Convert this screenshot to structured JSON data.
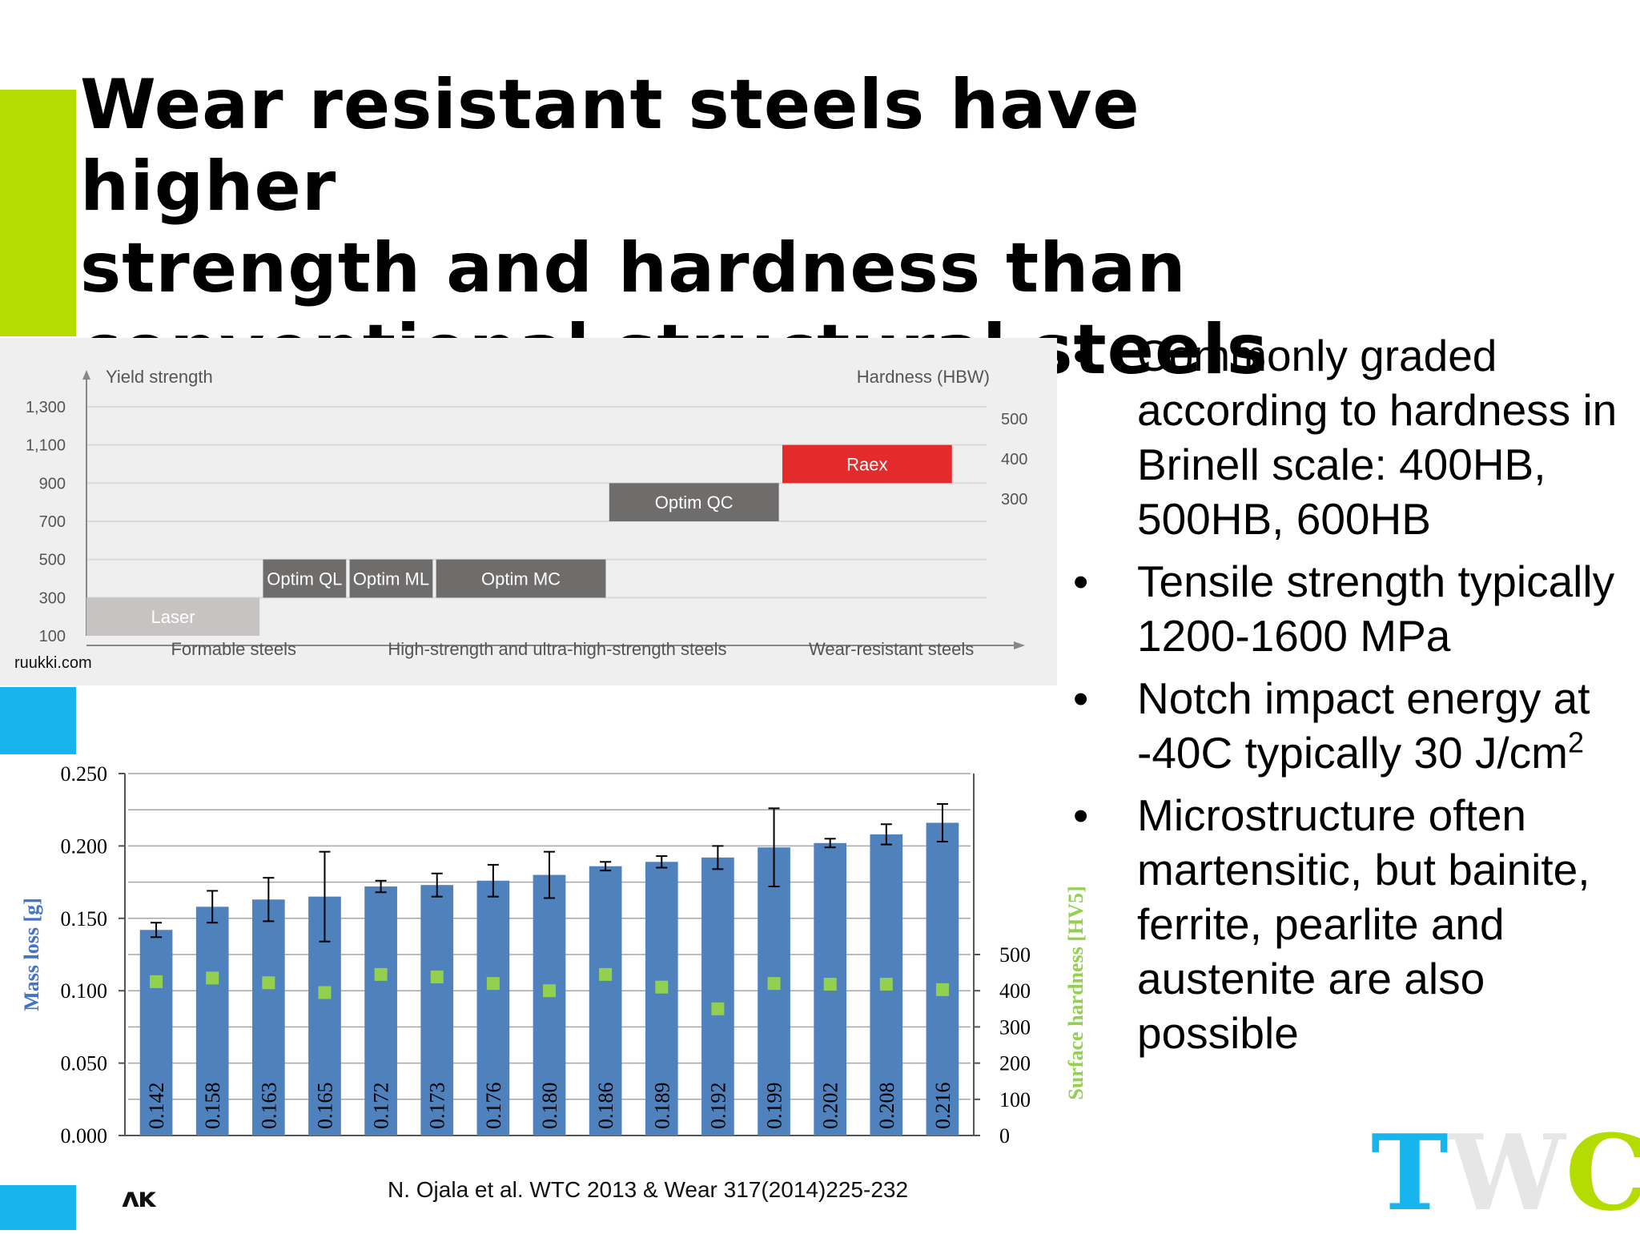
{
  "title": "Wear resistant steels have higher\nstrength and hardness than\nconventional structural steels",
  "bullets": [
    {
      "text": "Commonly graded according to hardness in Brinell scale: 400HB, 500HB, 600HB"
    },
    {
      "text": "Tensile strength typically 1200-1600 MPa"
    },
    {
      "text": "Notch impact energy at -40C typically 30 J/cm",
      "sup": "2"
    },
    {
      "text": "Microstructure often martensitic, but bainite, ferrite, pearlite and austenite are also possible"
    }
  ],
  "bullet_symbol": "•",
  "source": "N. Ojala et al. WTC 2013 & Wear 317(2014)225-232",
  "logo_left": "ᴧᴋ",
  "logo_twc": {
    "t": "T",
    "w": "W",
    "c": "C"
  },
  "colors": {
    "accent_green": "#b4dc00",
    "accent_blue": "#18b4ee",
    "bar_blue": "#4f81bd",
    "hardness_green": "#92d050",
    "raex_red": "#e32b2b",
    "laser_gray": "#c8c3c3",
    "optim_gray": "#6f6c6c"
  },
  "chart_data": [
    {
      "type": "bar",
      "title": "",
      "ylabel": "Yield strength",
      "y2label": "Hardness (HBW)",
      "y_ticks": [
        "1,300",
        "1,100",
        "900",
        "700",
        "500",
        "300",
        "100"
      ],
      "y2_ticks": [
        "500",
        "400",
        "300"
      ],
      "categories": [
        "Formable steels",
        "High-strength and ultra-high-strength steels",
        "Wear-resistant steels"
      ],
      "source_note": "ruukki.com",
      "bars": [
        {
          "label": "Laser",
          "x0": 0,
          "x1": 1,
          "y0": 100,
          "y1": 300,
          "color": "#c8c3c3"
        },
        {
          "label": "Optim QL",
          "x0": 1.02,
          "x1": 1.5,
          "y0": 300,
          "y1": 500,
          "color": "#6f6c6c"
        },
        {
          "label": "Optim ML",
          "x0": 1.52,
          "x1": 2.0,
          "y0": 300,
          "y1": 500,
          "color": "#6f6c6c"
        },
        {
          "label": "Optim MC",
          "x0": 2.02,
          "x1": 3.0,
          "y0": 300,
          "y1": 500,
          "color": "#6f6c6c"
        },
        {
          "label": "Optim QC",
          "x0": 3.02,
          "x1": 4.0,
          "y0": 700,
          "y1": 900,
          "color": "#6f6c6c"
        },
        {
          "label": "Raex",
          "x0": 4.02,
          "x1": 5.0,
          "y0": 900,
          "y1": 1100,
          "color": "#e32b2b"
        }
      ],
      "ylim": [
        100,
        1300
      ],
      "xlim": [
        0,
        5.2
      ]
    },
    {
      "type": "bar",
      "title": "",
      "ylabel": "Mass loss [g]",
      "y2label": "Surface hardness [HV5]",
      "ylim": [
        0,
        0.25
      ],
      "y_ticks": [
        "0.250",
        "0.200",
        "0.150",
        "0.100",
        "0.050",
        "0.000"
      ],
      "y2lim": [
        0,
        1000
      ],
      "y2_ticks": [
        "500",
        "400",
        "300",
        "200",
        "100",
        "0"
      ],
      "values": [
        0.142,
        0.158,
        0.163,
        0.165,
        0.172,
        0.173,
        0.176,
        0.18,
        0.186,
        0.189,
        0.192,
        0.199,
        0.202,
        0.208,
        0.216
      ],
      "value_labels": [
        "0.142",
        "0.158",
        "0.163",
        "0.165",
        "0.172",
        "0.173",
        "0.176",
        "0.180",
        "0.186",
        "0.189",
        "0.192",
        "0.199",
        "0.202",
        "0.208",
        "0.216"
      ],
      "errors": [
        0.005,
        0.011,
        0.015,
        0.031,
        0.004,
        0.008,
        0.011,
        0.016,
        0.003,
        0.004,
        0.008,
        0.027,
        0.003,
        0.007,
        0.013
      ],
      "hardness": [
        425,
        435,
        422,
        395,
        445,
        438,
        420,
        400,
        445,
        410,
        350,
        420,
        418,
        418,
        403
      ]
    }
  ]
}
